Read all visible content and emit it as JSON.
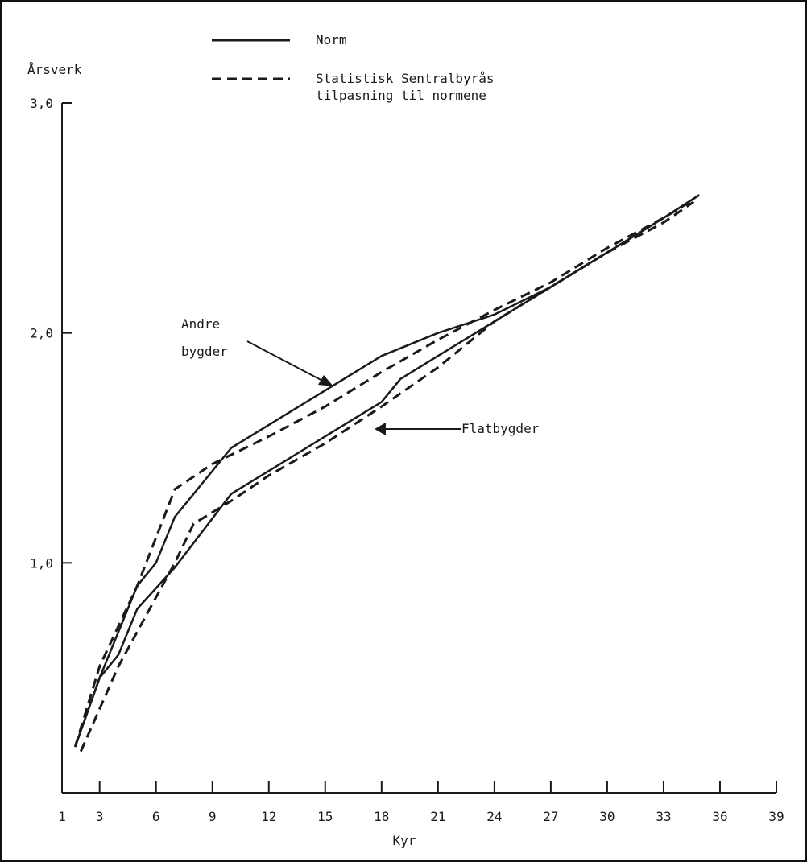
{
  "chart_data": {
    "type": "line",
    "title": "",
    "xlabel": "Kyr",
    "ylabel": "Årsverk",
    "xlim": [
      1,
      39
    ],
    "ylim": [
      0,
      3
    ],
    "x_ticks": [
      "1",
      "3",
      "6",
      "9",
      "12",
      "15",
      "18",
      "21",
      "24",
      "27",
      "30",
      "33",
      "36",
      "39"
    ],
    "y_ticks": [
      "1,0",
      "2,0",
      "3,0"
    ],
    "grid": false,
    "legend": {
      "placement": "top-center",
      "entries": [
        {
          "label": "Norm",
          "style": "solid"
        },
        {
          "label_line1": "Statistisk Sentralbyrås",
          "label_line2": "tilpasning til normene",
          "style": "dashed"
        }
      ]
    },
    "annotations": [
      {
        "line1": "Andre",
        "line2": "bygder",
        "points_to": "Andre bygder"
      },
      {
        "text": "Flatbygder",
        "points_to": "Flatbygder"
      }
    ],
    "series": [
      {
        "group": "Andre bygder",
        "style": "solid",
        "color": "#1a1a1a",
        "x": [
          1.7,
          3,
          5,
          6,
          7,
          10,
          12,
          15,
          18,
          21,
          24,
          27,
          30,
          33,
          34.9
        ],
        "y": [
          0.2,
          0.5,
          0.9,
          1.0,
          1.2,
          1.5,
          1.6,
          1.75,
          1.9,
          2.0,
          2.08,
          2.2,
          2.35,
          2.5,
          2.6
        ]
      },
      {
        "group": "Andre bygder",
        "style": "dashed",
        "color": "#1a1a1a",
        "x": [
          1.7,
          3,
          5,
          7,
          9,
          12,
          15,
          18,
          21,
          24,
          27,
          30,
          33,
          34.6
        ],
        "y": [
          0.2,
          0.55,
          0.9,
          1.32,
          1.43,
          1.55,
          1.68,
          1.83,
          1.97,
          2.1,
          2.22,
          2.37,
          2.5,
          2.58
        ]
      },
      {
        "group": "Flatbygder",
        "style": "solid",
        "color": "#1a1a1a",
        "x": [
          1.7,
          3,
          4,
          5,
          7,
          10,
          12,
          15,
          18,
          19,
          21,
          24,
          25,
          27,
          30,
          33,
          34.9
        ],
        "y": [
          0.2,
          0.5,
          0.6,
          0.8,
          0.98,
          1.3,
          1.4,
          1.55,
          1.7,
          1.8,
          1.9,
          2.05,
          2.1,
          2.2,
          2.35,
          2.5,
          2.6
        ]
      },
      {
        "group": "Flatbygder",
        "style": "dashed",
        "color": "#1a1a1a",
        "x": [
          2,
          4,
          6,
          7,
          8,
          10,
          12,
          15,
          18,
          21,
          24,
          27,
          30,
          33,
          34.6
        ],
        "y": [
          0.18,
          0.55,
          0.85,
          1.0,
          1.17,
          1.27,
          1.38,
          1.52,
          1.68,
          1.85,
          2.05,
          2.2,
          2.35,
          2.48,
          2.57
        ]
      }
    ]
  }
}
